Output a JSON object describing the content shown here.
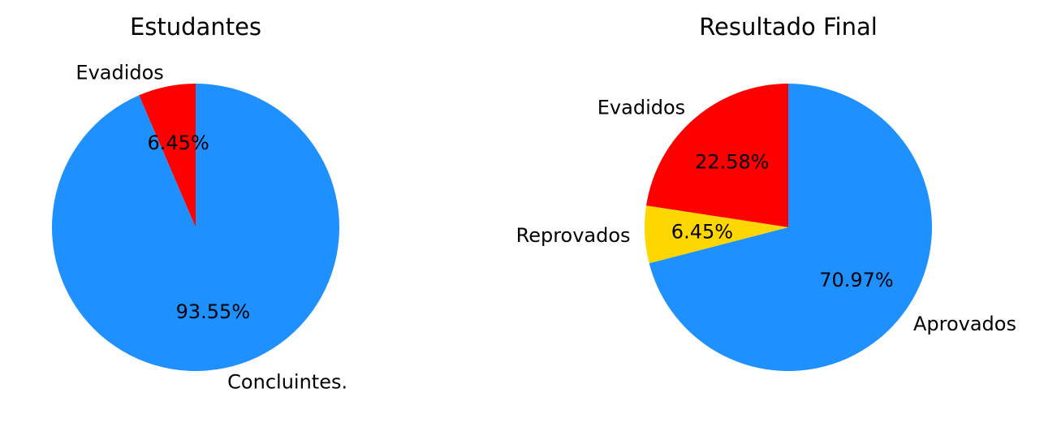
{
  "chart_data": [
    {
      "type": "pie",
      "title": "Estudantes",
      "slices": [
        {
          "label": "Evadidos",
          "value": 6.45,
          "pct_label": "6.45%",
          "color": "#ff0000"
        },
        {
          "label": "Concluintes.",
          "value": 93.55,
          "pct_label": "93.55%",
          "color": "#1e90ff"
        }
      ]
    },
    {
      "type": "pie",
      "title": "Resultado Final",
      "slices": [
        {
          "label": "Evadidos",
          "value": 22.58,
          "pct_label": "22.58%",
          "color": "#ff0000"
        },
        {
          "label": "Reprovados",
          "value": 6.45,
          "pct_label": "6.45%",
          "color": "#ffd700"
        },
        {
          "label": "Aprovados",
          "value": 70.97,
          "pct_label": "70.97%",
          "color": "#1e90ff"
        }
      ]
    }
  ]
}
